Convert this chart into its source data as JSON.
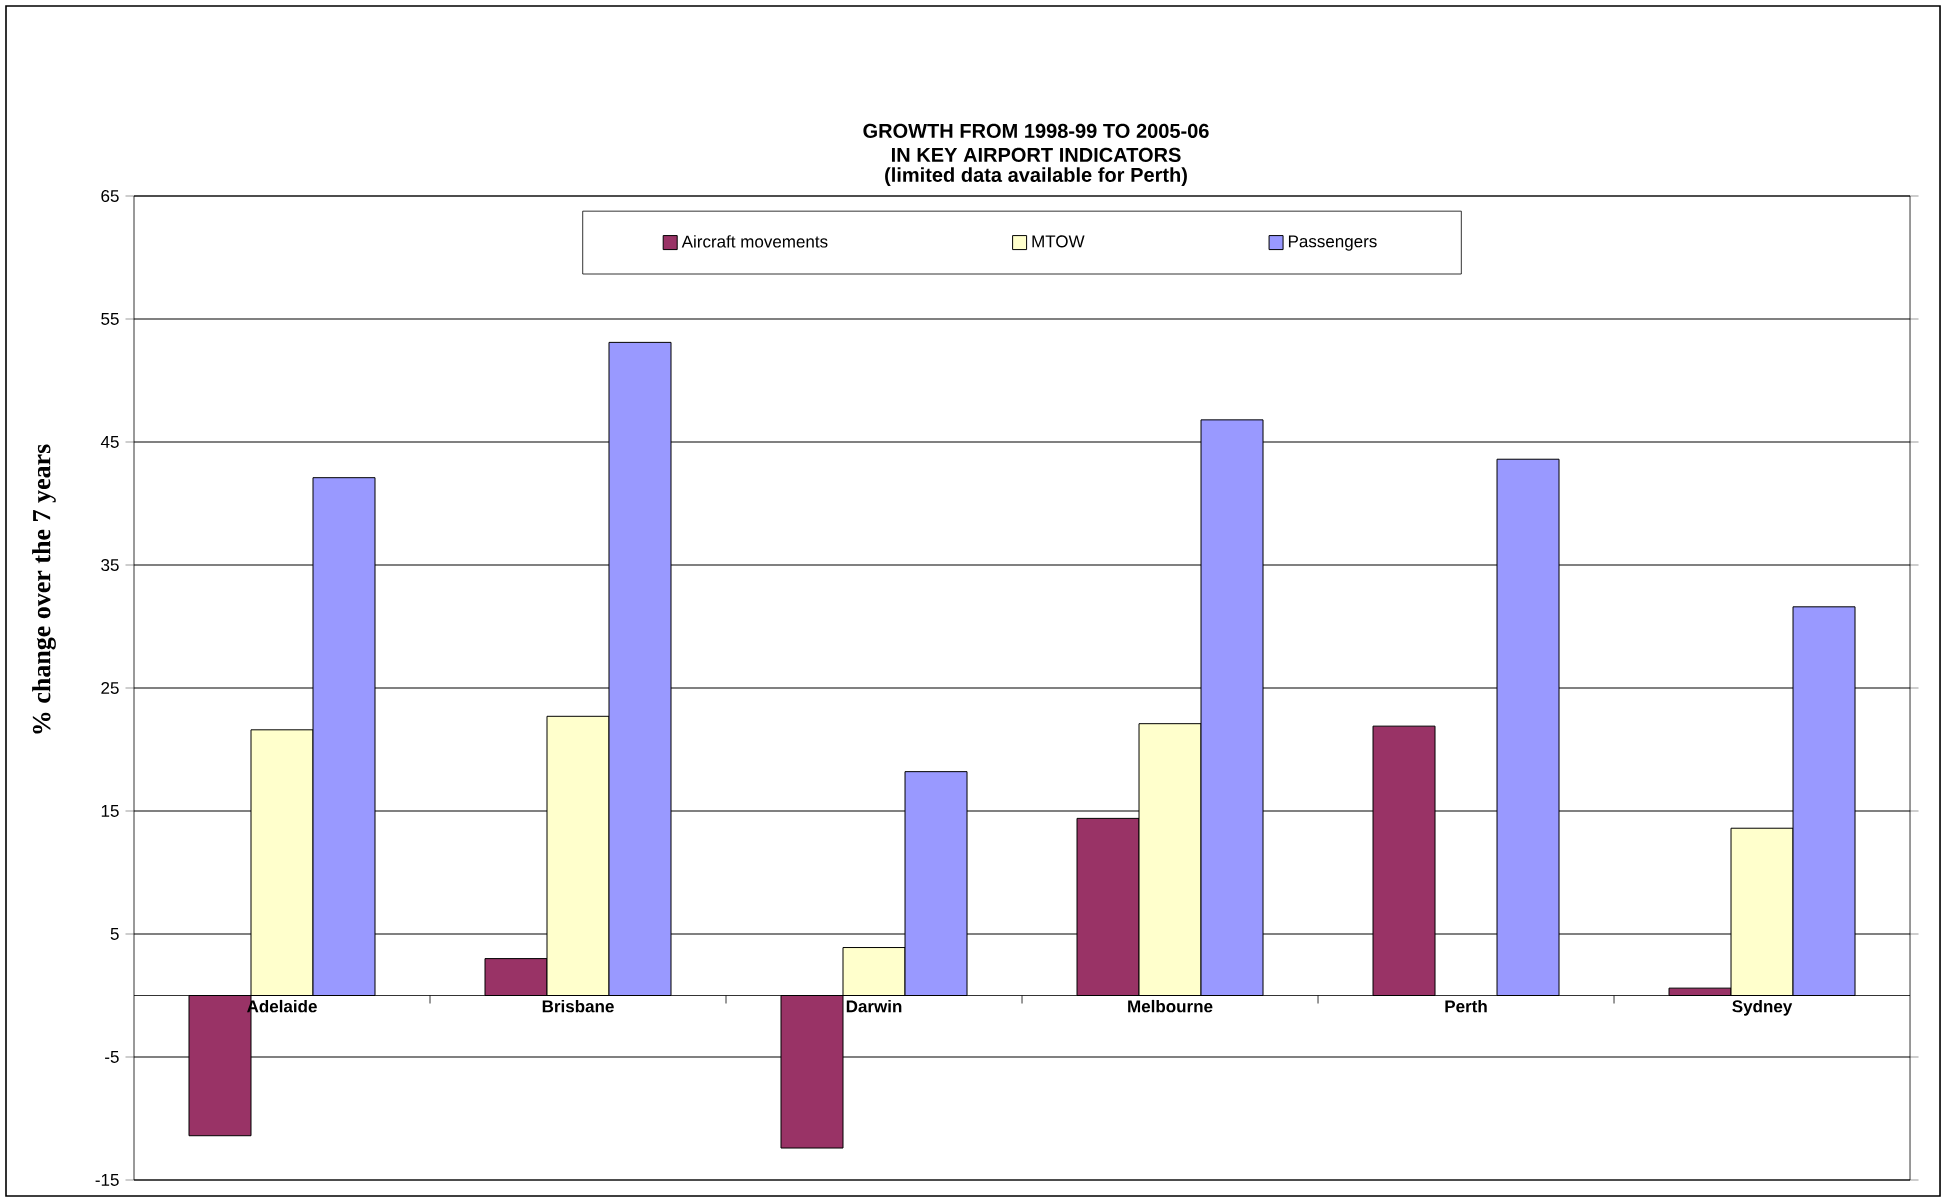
{
  "chart_data": {
    "type": "bar",
    "title": "GROWTH FROM 1998-99 TO 2005-06 IN KEY AIRPORT INDICATORS",
    "subtitle": "(limited data available for Perth)",
    "ylabel": "% change over the 7 years",
    "categories": [
      "Adelaide",
      "Brisbane",
      "Darwin",
      "Melbourne",
      "Perth",
      "Sydney"
    ],
    "series": [
      {
        "name": "Aircraft movements",
        "color": "#993366",
        "values": [
          -11.4,
          3.0,
          -12.4,
          14.4,
          21.9,
          0.6
        ]
      },
      {
        "name": "MTOW",
        "color": "#ffffcc",
        "values": [
          21.6,
          22.7,
          3.9,
          22.1,
          null,
          13.6
        ]
      },
      {
        "name": "Passengers",
        "color": "#9999ff",
        "values": [
          42.1,
          53.1,
          18.2,
          46.8,
          43.6,
          31.6
        ]
      }
    ],
    "ylim": [
      -15,
      65
    ],
    "yticks": [
      -15,
      -5,
      5,
      15,
      25,
      35,
      45,
      55,
      65
    ],
    "grid": "y",
    "legend": "top"
  }
}
